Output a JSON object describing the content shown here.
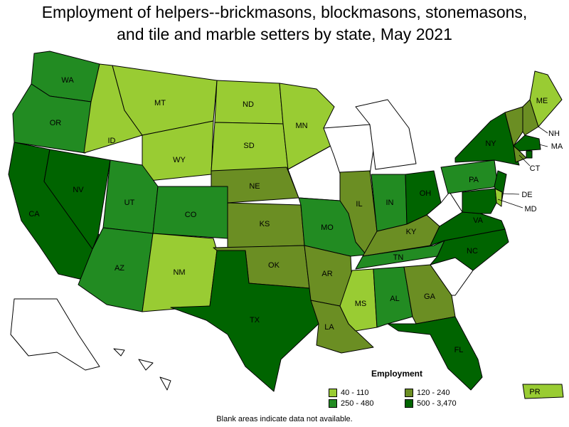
{
  "title": {
    "line1": "Employment of helpers--brickmasons, blockmasons, stonemasons,",
    "line2": "and tile and marble setters by state, May 2021"
  },
  "legend": {
    "title": "Employment",
    "bins": [
      {
        "label": "40 - 110",
        "color": "#99cc33"
      },
      {
        "label": "120 - 240",
        "color": "#6b8e23"
      },
      {
        "label": "250 - 480",
        "color": "#228b22"
      },
      {
        "label": "500 - 3,470",
        "color": "#006400"
      }
    ]
  },
  "colors": {
    "no_data": "#ffffff",
    "outline": "#000000"
  },
  "footnote": "Blank areas indicate data not available.",
  "states": [
    {
      "abbr": "WA",
      "bin": 2
    },
    {
      "abbr": "OR",
      "bin": 2
    },
    {
      "abbr": "CA",
      "bin": 3
    },
    {
      "abbr": "NV",
      "bin": 3
    },
    {
      "abbr": "ID",
      "bin": 0
    },
    {
      "abbr": "MT",
      "bin": 0
    },
    {
      "abbr": "WY",
      "bin": 0
    },
    {
      "abbr": "UT",
      "bin": 2
    },
    {
      "abbr": "CO",
      "bin": 2
    },
    {
      "abbr": "AZ",
      "bin": 2
    },
    {
      "abbr": "NM",
      "bin": 0
    },
    {
      "abbr": "ND",
      "bin": 0
    },
    {
      "abbr": "SD",
      "bin": 0
    },
    {
      "abbr": "NE",
      "bin": 1
    },
    {
      "abbr": "KS",
      "bin": 1
    },
    {
      "abbr": "OK",
      "bin": 1
    },
    {
      "abbr": "TX",
      "bin": 3
    },
    {
      "abbr": "MN",
      "bin": 0
    },
    {
      "abbr": "IA",
      "bin": null
    },
    {
      "abbr": "MO",
      "bin": 2
    },
    {
      "abbr": "AR",
      "bin": 1
    },
    {
      "abbr": "LA",
      "bin": 1
    },
    {
      "abbr": "WI",
      "bin": null
    },
    {
      "abbr": "IL",
      "bin": 1
    },
    {
      "abbr": "MI",
      "bin": null
    },
    {
      "abbr": "IN",
      "bin": 2
    },
    {
      "abbr": "OH",
      "bin": 3
    },
    {
      "abbr": "KY",
      "bin": 1
    },
    {
      "abbr": "TN",
      "bin": 2
    },
    {
      "abbr": "MS",
      "bin": 0
    },
    {
      "abbr": "AL",
      "bin": 2
    },
    {
      "abbr": "GA",
      "bin": 1
    },
    {
      "abbr": "FL",
      "bin": 3
    },
    {
      "abbr": "SC",
      "bin": null
    },
    {
      "abbr": "NC",
      "bin": 3
    },
    {
      "abbr": "VA",
      "bin": 3
    },
    {
      "abbr": "WV",
      "bin": null
    },
    {
      "abbr": "PA",
      "bin": 2
    },
    {
      "abbr": "NY",
      "bin": 3
    },
    {
      "abbr": "VT",
      "bin": 1
    },
    {
      "abbr": "NH",
      "bin": 1
    },
    {
      "abbr": "ME",
      "bin": 0
    },
    {
      "abbr": "MA",
      "bin": 3
    },
    {
      "abbr": "CT",
      "bin": 1
    },
    {
      "abbr": "RI",
      "bin": 3
    },
    {
      "abbr": "NJ",
      "bin": 3
    },
    {
      "abbr": "DE",
      "bin": 0
    },
    {
      "abbr": "MD",
      "bin": 3
    },
    {
      "abbr": "AK",
      "bin": null
    },
    {
      "abbr": "HI",
      "bin": null
    },
    {
      "abbr": "PR",
      "bin": 0
    }
  ],
  "labels": [
    "WA",
    "OR",
    "CA",
    "NV",
    "ID",
    "MT",
    "WY",
    "UT",
    "CO",
    "AZ",
    "NM",
    "ND",
    "SD",
    "NE",
    "KS",
    "OK",
    "TX",
    "MN",
    "MO",
    "AR",
    "LA",
    "IL",
    "IN",
    "OH",
    "KY",
    "TN",
    "MS",
    "AL",
    "GA",
    "FL",
    "NC",
    "VA",
    "PA",
    "NY",
    "ME",
    "NH",
    "MA",
    "CT",
    "DE",
    "MD",
    "PR"
  ]
}
